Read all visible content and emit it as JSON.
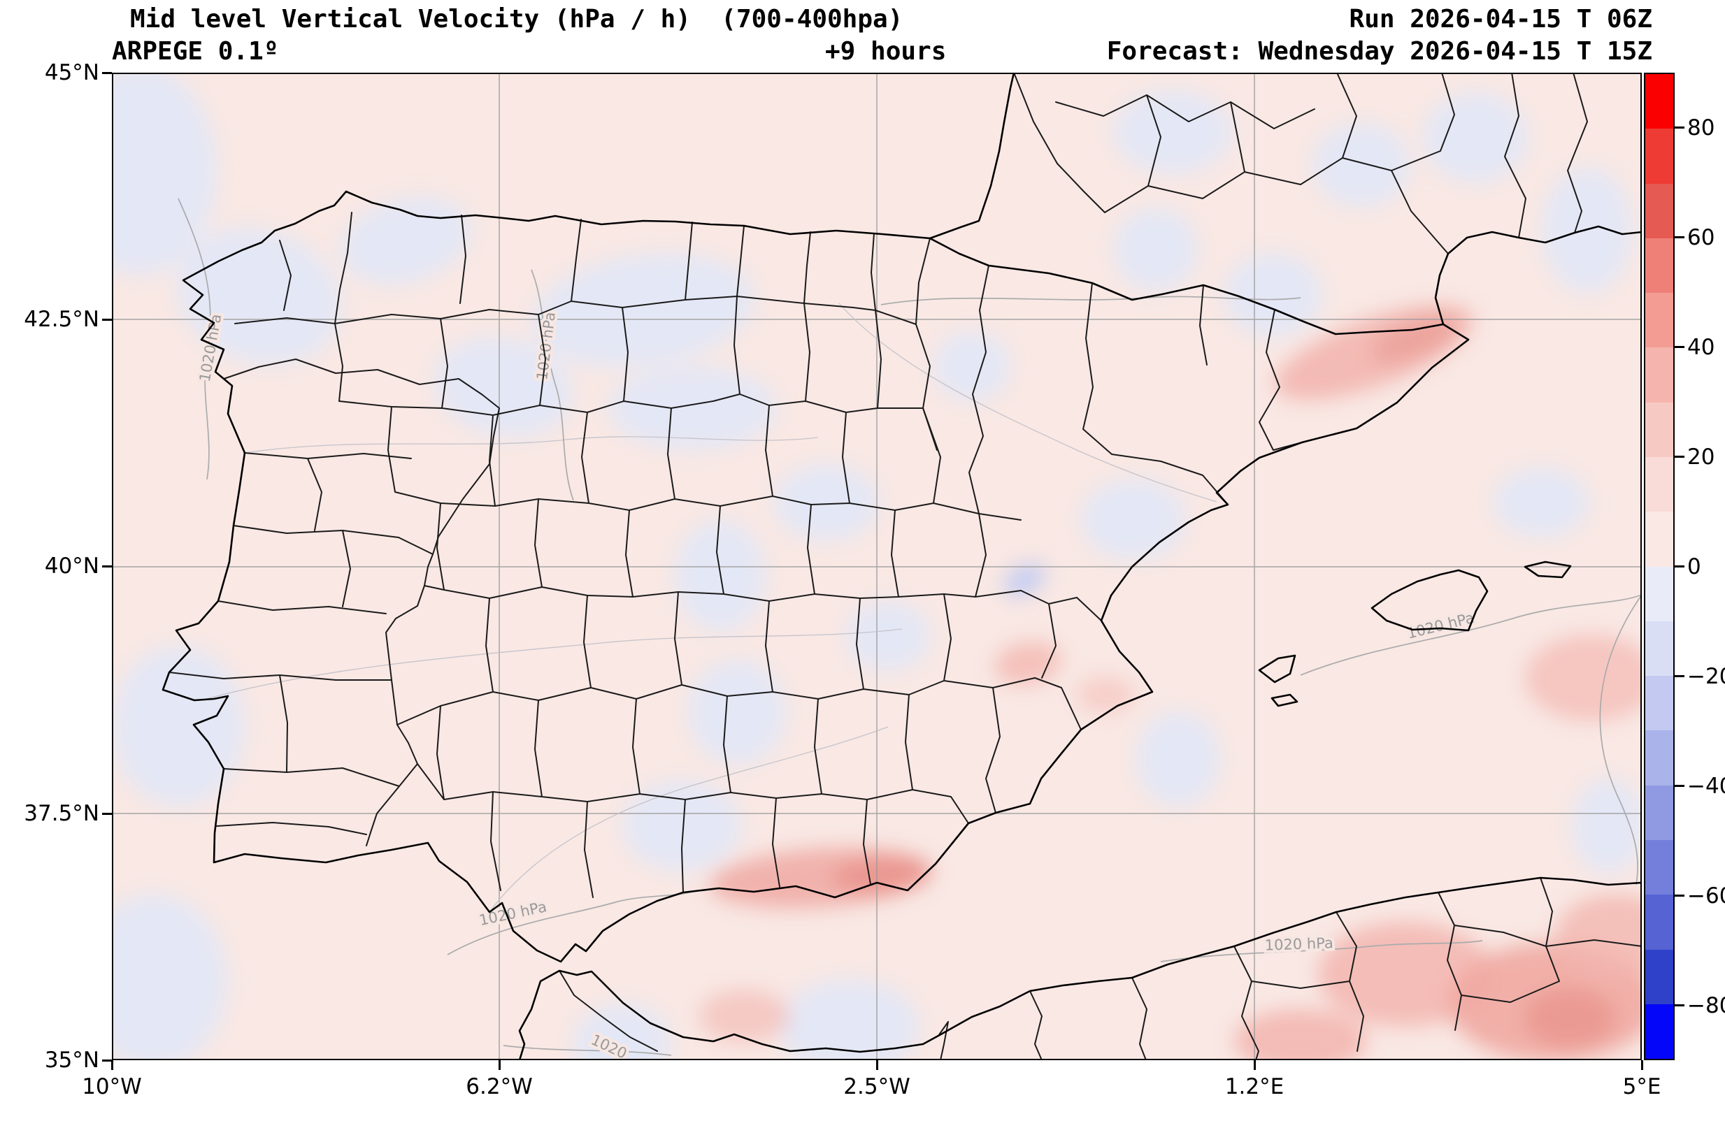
{
  "header": {
    "title": "Mid level Vertical Velocity (hPa / h)  (700-400hpa)",
    "model": "ARPEGE 0.1º",
    "lead_time": "+9 hours",
    "run_label": "Run 2026-04-15 T 06Z",
    "forecast_label": "Forecast: Wednesday 2026-04-15 T 15Z"
  },
  "axes": {
    "lat_ticks": [
      "45°N",
      "42.5°N",
      "40°N",
      "37.5°N",
      "35°N"
    ],
    "lon_ticks": [
      "10°W",
      "6.2°W",
      "2.5°W",
      "1.2°E",
      "5°E"
    ]
  },
  "map": {
    "region": "Iberian Peninsula and western Mediterranean",
    "isobar_labels": [
      "1020 hPa",
      "1020 hPa",
      "1020 hPa",
      "1020 hPa",
      "1020 hPa",
      "1020"
    ]
  },
  "colorbar": {
    "units": "hPa / h",
    "max": 90,
    "min": -90,
    "tick_values": [
      80,
      60,
      40,
      20,
      0,
      -20,
      -40,
      -60,
      -80
    ],
    "tick_labels": [
      "80",
      "60",
      "40",
      "20",
      "0",
      "−20",
      "−40",
      "−60",
      "−80"
    ],
    "segment_colors_top_to_bottom": [
      "#fb0000",
      "#ee3b34",
      "#e55a52",
      "#ee8078",
      "#f29c94",
      "#f5b5ae",
      "#f7c9c3",
      "#f9dcd7",
      "#fae8e4",
      "#e9ebf8",
      "#dadef5",
      "#c3c9f0",
      "#aab3ea",
      "#8f9ae3",
      "#737fdb",
      "#5563d3",
      "#2f40c9",
      "#0406f9"
    ]
  },
  "field_colors": {
    "background_weak_positive": "#f9e8e4",
    "negative_patch": "#e3e7f6",
    "positive_patch": "#f2b3ad",
    "strong_negative_patch": "#c6cdf2"
  }
}
